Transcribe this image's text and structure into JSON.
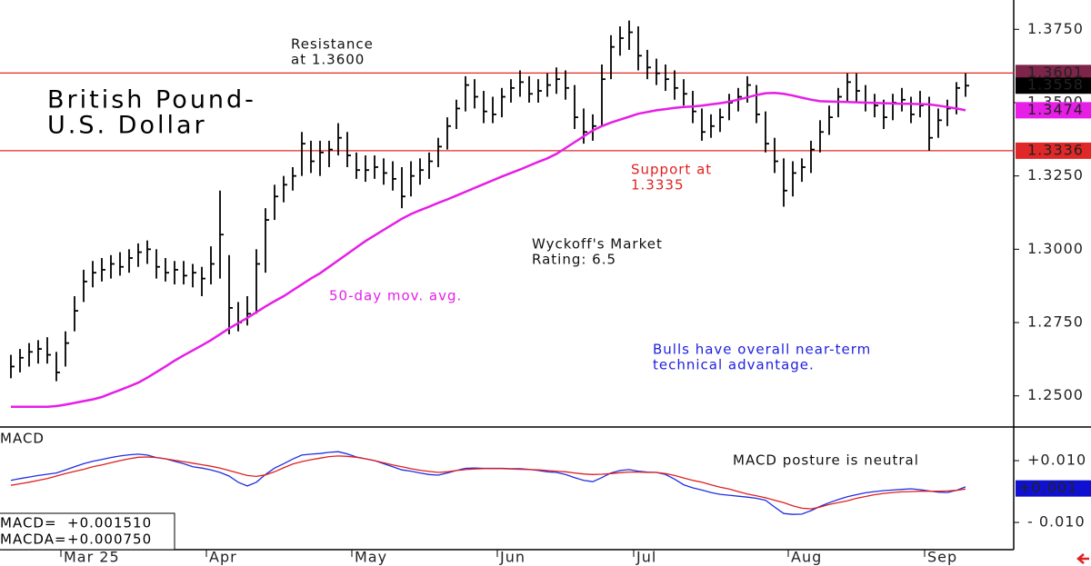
{
  "chart_data": {
    "type": "ohlc",
    "title": [
      "British Pound-",
      "U.S. Dollar"
    ],
    "color": "#000000",
    "categories": [
      null,
      null,
      null,
      null,
      null,
      null,
      "Mar 25",
      null,
      null,
      null,
      null,
      null,
      null,
      null,
      null,
      null,
      null,
      null,
      null,
      null,
      null,
      null,
      "Apr",
      null,
      null,
      null,
      null,
      null,
      null,
      null,
      null,
      null,
      null,
      null,
      null,
      null,
      null,
      null,
      "May",
      null,
      null,
      null,
      null,
      null,
      null,
      null,
      null,
      null,
      null,
      null,
      null,
      null,
      null,
      null,
      "Jun",
      null,
      null,
      null,
      null,
      null,
      null,
      null,
      null,
      null,
      null,
      null,
      null,
      null,
      null,
      "Jul",
      null,
      null,
      null,
      null,
      null,
      null,
      null,
      null,
      null,
      null,
      null,
      null,
      null,
      null,
      null,
      null,
      "Aug",
      null,
      null,
      null,
      null,
      null,
      null,
      null,
      null,
      null,
      null,
      null,
      null,
      null,
      null,
      "Sep",
      null,
      null,
      null,
      null
    ],
    "high": [
      1.264,
      1.266,
      1.268,
      1.269,
      1.27,
      1.265,
      1.272,
      1.284,
      1.293,
      1.296,
      1.297,
      1.298,
      1.299,
      1.3,
      1.302,
      1.303,
      1.3,
      1.297,
      1.296,
      1.296,
      1.295,
      1.294,
      1.301,
      1.32,
      1.298,
      1.282,
      1.284,
      1.3,
      1.314,
      1.322,
      1.325,
      1.328,
      1.34,
      1.337,
      1.337,
      1.337,
      1.343,
      1.34,
      1.333,
      1.332,
      1.332,
      1.331,
      1.33,
      1.328,
      1.33,
      1.331,
      1.333,
      1.338,
      1.345,
      1.351,
      1.359,
      1.358,
      1.354,
      1.352,
      1.355,
      1.358,
      1.361,
      1.359,
      1.358,
      1.36,
      1.362,
      1.361,
      1.356,
      1.348,
      1.346,
      1.363,
      1.373,
      1.376,
      1.378,
      1.376,
      1.368,
      1.365,
      1.363,
      1.361,
      1.358,
      1.354,
      1.348,
      1.346,
      1.348,
      1.353,
      1.355,
      1.359,
      1.356,
      1.347,
      1.338,
      1.331,
      1.33,
      1.331,
      1.337,
      1.344,
      1.349,
      1.355,
      1.36,
      1.36,
      1.356,
      1.353,
      1.351,
      1.353,
      1.355,
      1.352,
      1.354,
      1.352,
      1.348,
      1.351,
      1.357,
      1.36
    ],
    "low": [
      1.256,
      1.258,
      1.26,
      1.261,
      1.261,
      1.255,
      1.26,
      1.272,
      1.282,
      1.287,
      1.289,
      1.29,
      1.291,
      1.292,
      1.294,
      1.295,
      1.29,
      1.289,
      1.288,
      1.288,
      1.287,
      1.284,
      1.288,
      1.29,
      1.271,
      1.272,
      1.274,
      1.278,
      1.292,
      1.31,
      1.316,
      1.32,
      1.325,
      1.326,
      1.325,
      1.328,
      1.332,
      1.328,
      1.324,
      1.323,
      1.324,
      1.322,
      1.32,
      1.314,
      1.318,
      1.322,
      1.324,
      1.328,
      1.334,
      1.341,
      1.347,
      1.348,
      1.343,
      1.343,
      1.345,
      1.35,
      1.352,
      1.35,
      1.35,
      1.352,
      1.353,
      1.351,
      1.341,
      1.336,
      1.337,
      1.342,
      1.358,
      1.366,
      1.368,
      1.361,
      1.358,
      1.356,
      1.354,
      1.351,
      1.349,
      1.343,
      1.337,
      1.338,
      1.34,
      1.344,
      1.347,
      1.35,
      1.343,
      1.333,
      1.326,
      1.3145,
      1.318,
      1.323,
      1.326,
      1.333,
      1.339,
      1.345,
      1.35,
      1.35,
      1.347,
      1.345,
      1.341,
      1.344,
      1.347,
      1.343,
      1.345,
      1.3336,
      1.338,
      1.342,
      1.346,
      1.352
    ],
    "close": [
      1.26,
      1.263,
      1.265,
      1.266,
      1.264,
      1.258,
      1.268,
      1.279,
      1.289,
      1.292,
      1.293,
      1.295,
      1.294,
      1.297,
      1.299,
      1.3,
      1.294,
      1.292,
      1.293,
      1.291,
      1.292,
      1.29,
      1.295,
      1.305,
      1.28,
      1.275,
      1.278,
      1.295,
      1.31,
      1.318,
      1.322,
      1.325,
      1.336,
      1.33,
      1.333,
      1.334,
      1.338,
      1.332,
      1.327,
      1.327,
      1.328,
      1.326,
      1.324,
      1.318,
      1.325,
      1.327,
      1.33,
      1.335,
      1.342,
      1.348,
      1.356,
      1.352,
      1.347,
      1.346,
      1.352,
      1.355,
      1.357,
      1.353,
      1.354,
      1.356,
      1.358,
      1.355,
      1.345,
      1.34,
      1.342,
      1.358,
      1.369,
      1.372,
      1.374,
      1.366,
      1.362,
      1.36,
      1.358,
      1.355,
      1.353,
      1.347,
      1.34,
      1.342,
      1.345,
      1.35,
      1.352,
      1.356,
      1.346,
      1.336,
      1.33,
      1.32,
      1.326,
      1.328,
      1.334,
      1.34,
      1.345,
      1.352,
      1.357,
      1.354,
      1.35,
      1.349,
      1.345,
      1.35,
      1.351,
      1.346,
      1.349,
      1.338,
      1.344,
      1.348,
      1.355,
      1.3558
    ],
    "ma": {
      "label": "50-day mov. avg.",
      "color": "#e61ee6",
      "values": [
        1.2463,
        1.2463,
        1.2463,
        1.2463,
        1.2463,
        1.2465,
        1.247,
        1.2476,
        1.2482,
        1.2488,
        1.2496,
        1.2508,
        1.252,
        1.2532,
        1.2545,
        1.2562,
        1.2581,
        1.26,
        1.262,
        1.2638,
        1.2655,
        1.2672,
        1.269,
        1.271,
        1.273,
        1.2748,
        1.2766,
        1.2785,
        1.2805,
        1.2823,
        1.284,
        1.286,
        1.288,
        1.29,
        1.2918,
        1.294,
        1.2962,
        1.2984,
        1.3006,
        1.3028,
        1.3047,
        1.3066,
        1.3085,
        1.3104,
        1.312,
        1.3133,
        1.3145,
        1.3158,
        1.317,
        1.3183,
        1.3196,
        1.3209,
        1.3222,
        1.3235,
        1.3248,
        1.326,
        1.3272,
        1.3285,
        1.3298,
        1.331,
        1.3325,
        1.3345,
        1.3365,
        1.3385,
        1.3405,
        1.342,
        1.3432,
        1.3442,
        1.3452,
        1.3462,
        1.3468,
        1.3474,
        1.3478,
        1.3482,
        1.3485,
        1.3487,
        1.349,
        1.3494,
        1.3498,
        1.3503,
        1.351,
        1.3518,
        1.3526,
        1.3532,
        1.3533,
        1.353,
        1.3524,
        1.3517,
        1.351,
        1.3505,
        1.3504,
        1.3503,
        1.3502,
        1.3501,
        1.35,
        1.3499,
        1.3498,
        1.3497,
        1.3496,
        1.3496,
        1.3495,
        1.3494,
        1.349,
        1.3485,
        1.348,
        1.3474
      ]
    },
    "ylim": [
      1.24,
      1.385
    ],
    "yticks": [
      {
        "value": 1.375,
        "label": "1.3750"
      },
      {
        "value": 1.35,
        "label": "1.3500"
      },
      {
        "value": 1.325,
        "label": "1.3250"
      },
      {
        "value": 1.3,
        "label": "1.3000"
      },
      {
        "value": 1.275,
        "label": "1.2750"
      },
      {
        "value": 1.25,
        "label": "1.2500"
      }
    ],
    "markers": [
      {
        "value": 1.3601,
        "color": "#7d2448",
        "line": "#e02828"
      },
      {
        "value": 1.3558,
        "color": "#000000"
      },
      {
        "value": 1.3474,
        "color": "#e61ee6"
      },
      {
        "value": 1.3336,
        "color": "#e02828",
        "line": "#e02828"
      }
    ],
    "annotations": {
      "resistance": [
        "Resistance",
        "at 1.3600"
      ],
      "support": [
        "Support at",
        "1.3335"
      ],
      "rating": [
        "Wyckoff's Market",
        "Rating: 6.5"
      ],
      "outlook": [
        "Bulls have overall near-term",
        "technical advantage."
      ],
      "macd_note": "MACD posture is neutral"
    },
    "macd": {
      "title": "MACD",
      "ylim": [
        -0.0188,
        0.0203
      ],
      "yticks": [
        {
          "value": 0.01,
          "label": "+0.010"
        },
        {
          "value": -0.01,
          "label": "- 0.010"
        }
      ],
      "marker": {
        "value": 0.001,
        "label": "+0.001",
        "color": "#1010d0"
      },
      "series": [
        {
          "name": "MACD=",
          "readout": "+0.001510",
          "color": "#1f2fe0",
          "values": [
            0.0036,
            0.0042,
            0.0047,
            0.0052,
            0.0056,
            0.006,
            0.007,
            0.008,
            0.009,
            0.0098,
            0.0104,
            0.011,
            0.0115,
            0.0119,
            0.0121,
            0.0118,
            0.011,
            0.0106,
            0.0098,
            0.009,
            0.008,
            0.0076,
            0.007,
            0.0062,
            0.005,
            0.003,
            0.0018,
            0.003,
            0.0055,
            0.0076,
            0.009,
            0.0105,
            0.0118,
            0.0121,
            0.0123,
            0.0127,
            0.0129,
            0.0122,
            0.0112,
            0.0106,
            0.01,
            0.009,
            0.008,
            0.007,
            0.0066,
            0.006,
            0.0055,
            0.0053,
            0.006,
            0.0068,
            0.0075,
            0.0076,
            0.0075,
            0.0075,
            0.0075,
            0.0074,
            0.0074,
            0.0072,
            0.0068,
            0.0064,
            0.0062,
            0.0055,
            0.0045,
            0.0036,
            0.0032,
            0.0045,
            0.006,
            0.0068,
            0.0071,
            0.0066,
            0.0063,
            0.0062,
            0.0055,
            0.004,
            0.0022,
            0.0012,
            0.0005,
            -0.0003,
            -0.0009,
            -0.0012,
            -0.0015,
            -0.0018,
            -0.0022,
            -0.0028,
            -0.005,
            -0.0071,
            -0.0074,
            -0.0073,
            -0.0062,
            -0.0048,
            -0.0036,
            -0.0026,
            -0.0017,
            -0.001,
            -0.0004,
            0.0,
            0.0003,
            0.0005,
            0.0007,
            0.0009,
            0.0006,
            0.0002,
            -0.0002,
            -0.0003,
            0.0004,
            0.0015
          ]
        },
        {
          "name": "MACDA=",
          "readout": "+0.000750",
          "color": "#e02020",
          "values": [
            0.002,
            0.0025,
            0.003,
            0.0036,
            0.0042,
            0.005,
            0.0058,
            0.0065,
            0.0072,
            0.008,
            0.0086,
            0.0093,
            0.01,
            0.0106,
            0.0111,
            0.0112,
            0.011,
            0.0106,
            0.0101,
            0.0097,
            0.0092,
            0.0087,
            0.0082,
            0.0076,
            0.0068,
            0.006,
            0.0052,
            0.0049,
            0.0054,
            0.0064,
            0.0077,
            0.0089,
            0.0097,
            0.0103,
            0.0108,
            0.0113,
            0.0115,
            0.0114,
            0.0111,
            0.0106,
            0.01,
            0.0093,
            0.0086,
            0.008,
            0.0074,
            0.0069,
            0.0065,
            0.0062,
            0.0064,
            0.0068,
            0.0071,
            0.0073,
            0.0074,
            0.0074,
            0.0074,
            0.0073,
            0.0072,
            0.0071,
            0.007,
            0.0068,
            0.0066,
            0.0064,
            0.006,
            0.0057,
            0.0055,
            0.0056,
            0.0058,
            0.0061,
            0.0063,
            0.0063,
            0.0062,
            0.0062,
            0.0058,
            0.0052,
            0.0044,
            0.0036,
            0.003,
            0.0022,
            0.0014,
            0.0008,
            0.0,
            -0.0008,
            -0.0014,
            -0.002,
            -0.0028,
            -0.0036,
            -0.0046,
            -0.0054,
            -0.0056,
            -0.005,
            -0.0042,
            -0.0036,
            -0.003,
            -0.0022,
            -0.0016,
            -0.001,
            -0.0006,
            -0.0003,
            -0.0001,
            0.0,
            0.0001,
            0.0001,
            0.0001,
            0.0002,
            0.0004,
            0.0008
          ]
        }
      ]
    }
  }
}
